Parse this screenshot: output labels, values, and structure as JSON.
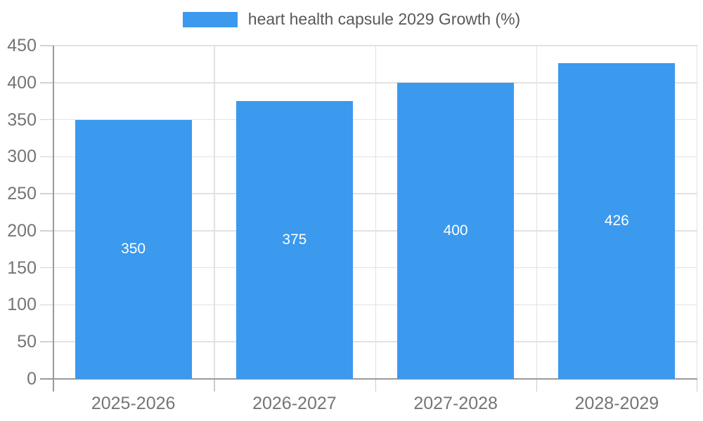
{
  "legend": {
    "label": "heart health capsule 2029 Growth (%)"
  },
  "chart_data": {
    "type": "bar",
    "title": "heart health capsule 2029 Growth (%)",
    "categories": [
      "2025-2026",
      "2026-2027",
      "2027-2028",
      "2028-2029"
    ],
    "values": [
      350,
      375,
      400,
      426
    ],
    "bar_labels": [
      "350",
      "375",
      "400",
      "426"
    ],
    "xlabel": "",
    "ylabel": "",
    "ylim": [
      0,
      450
    ],
    "ytick_step": 50,
    "grid": true,
    "legend_position": "top",
    "colors": {
      "bar": "#3b99ee",
      "bar_label": "#ffffff",
      "axis_text": "#757575",
      "legend_text": "#595959",
      "gridline": "#e2e2e2",
      "axis_line": "#9a9a9a"
    }
  }
}
